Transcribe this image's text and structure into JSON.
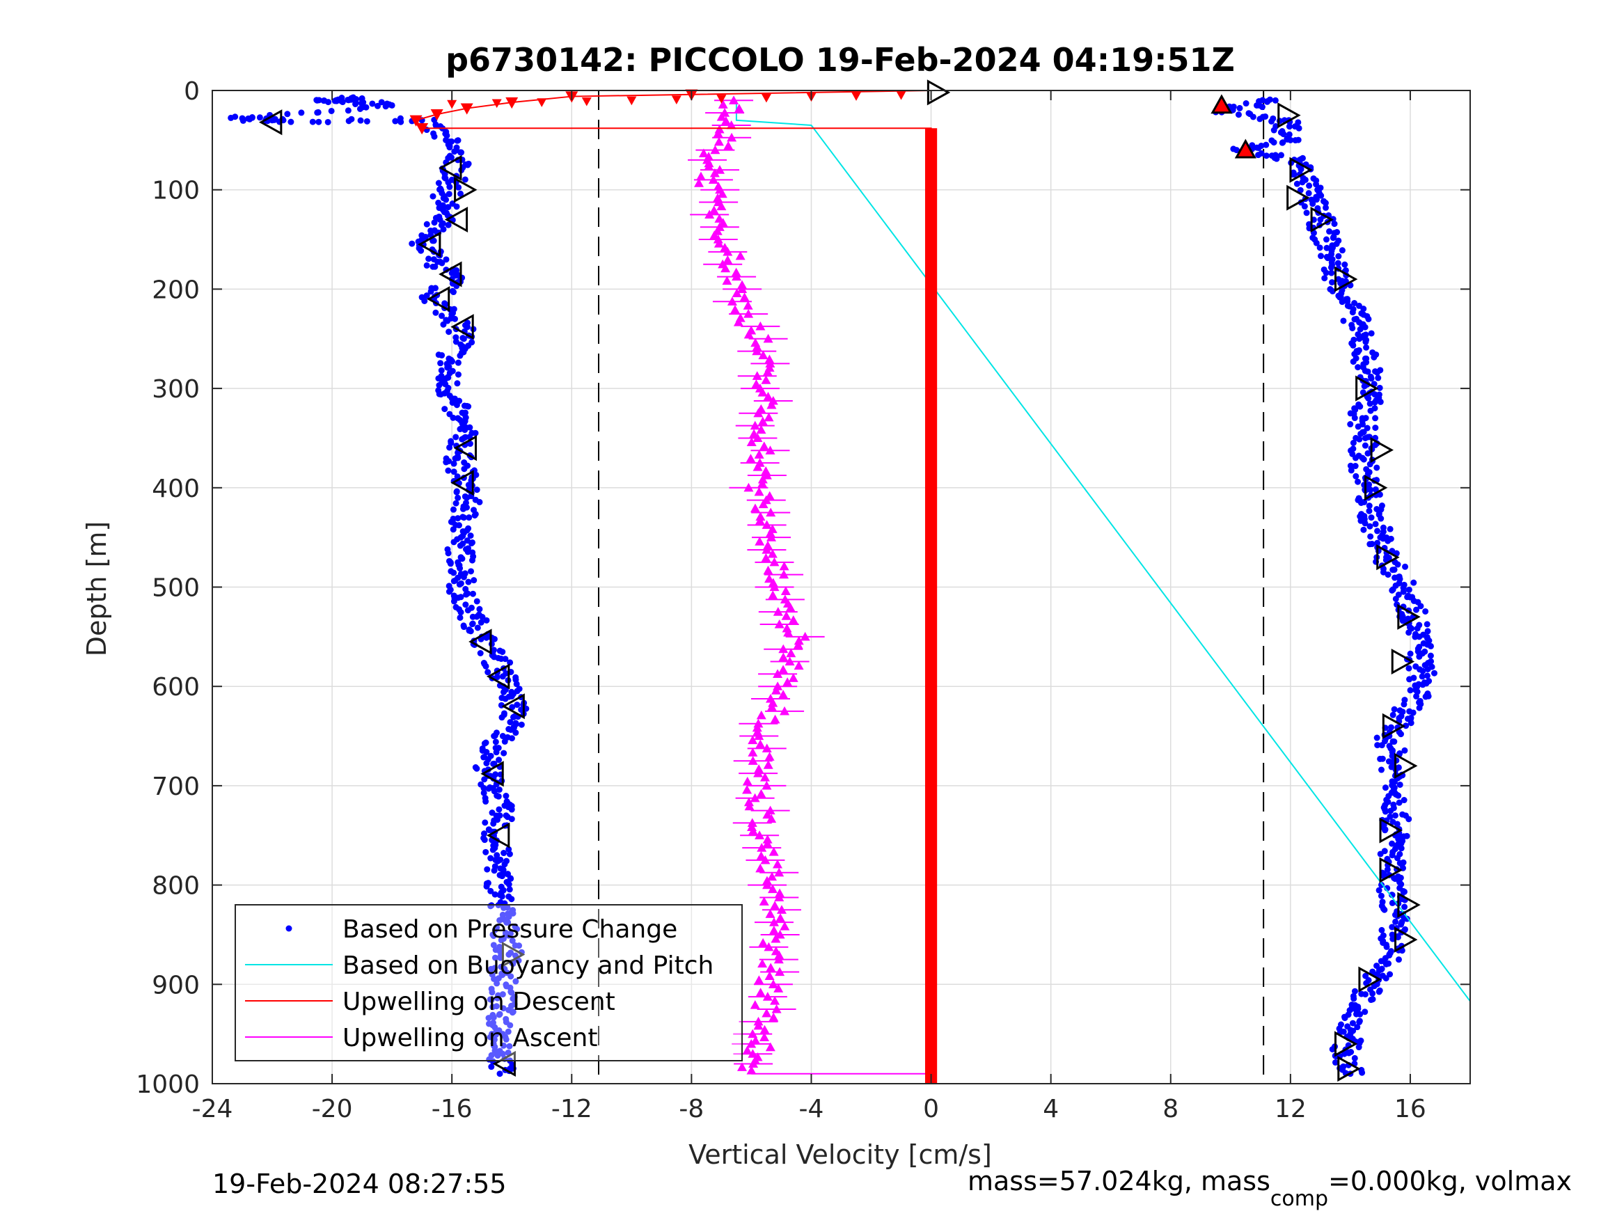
{
  "chart_data": {
    "type": "scatter",
    "title": "p6730142: PICCOLO 19-Feb-2024 04:19:51Z",
    "xlabel": "Vertical Velocity [cm/s]",
    "ylabel": "Depth [m]",
    "xlim": [
      -24,
      18
    ],
    "ylim": [
      0,
      1000
    ],
    "y_reversed": true,
    "grid": true,
    "x_ticks": [
      -24,
      -20,
      -16,
      -12,
      -8,
      -4,
      0,
      4,
      8,
      12,
      16
    ],
    "y_ticks": [
      0,
      100,
      200,
      300,
      400,
      500,
      600,
      700,
      800,
      900,
      1000
    ],
    "legend_position": "bottom-left",
    "reference_lines": [
      -11.1,
      11.1
    ],
    "series": [
      {
        "name": "Based on Pressure Change",
        "color": "#0000ff",
        "style": "dots",
        "descent": [
          [
            -23,
            28
          ],
          [
            -22,
            30
          ],
          [
            -20.5,
            10
          ],
          [
            -19,
            8
          ],
          [
            -18,
            15
          ],
          [
            -17,
            30
          ],
          [
            -16.2,
            50
          ],
          [
            -15.8,
            70
          ],
          [
            -16,
            90
          ],
          [
            -16.2,
            110
          ],
          [
            -16.4,
            130
          ],
          [
            -17,
            150
          ],
          [
            -16.6,
            170
          ],
          [
            -16,
            190
          ],
          [
            -16.6,
            210
          ],
          [
            -15.9,
            230
          ],
          [
            -15.6,
            250
          ],
          [
            -16.1,
            270
          ],
          [
            -16.2,
            290
          ],
          [
            -16,
            310
          ],
          [
            -15.8,
            330
          ],
          [
            -15.6,
            350
          ],
          [
            -15.8,
            370
          ],
          [
            -15.6,
            390
          ],
          [
            -15.5,
            410
          ],
          [
            -15.6,
            430
          ],
          [
            -15.7,
            450
          ],
          [
            -15.7,
            470
          ],
          [
            -15.6,
            490
          ],
          [
            -15.7,
            510
          ],
          [
            -15.3,
            530
          ],
          [
            -15,
            550
          ],
          [
            -14.6,
            570
          ],
          [
            -14.3,
            590
          ],
          [
            -14,
            610
          ],
          [
            -13.9,
            630
          ],
          [
            -14.3,
            650
          ],
          [
            -14.7,
            670
          ],
          [
            -14.8,
            690
          ],
          [
            -14.5,
            710
          ],
          [
            -14.4,
            730
          ],
          [
            -14.6,
            750
          ],
          [
            -14.5,
            770
          ],
          [
            -14.4,
            790
          ],
          [
            -14.4,
            810
          ],
          [
            -14.3,
            830
          ],
          [
            -14.2,
            850
          ],
          [
            -14.1,
            870
          ],
          [
            -14.3,
            890
          ],
          [
            -14.3,
            910
          ],
          [
            -14.4,
            930
          ],
          [
            -14.3,
            950
          ],
          [
            -14.3,
            970
          ],
          [
            -14.4,
            990
          ]
        ],
        "ascent": [
          [
            14,
            990
          ],
          [
            13.8,
            970
          ],
          [
            14,
            950
          ],
          [
            14.2,
            930
          ],
          [
            14.5,
            910
          ],
          [
            14.9,
            890
          ],
          [
            15.3,
            870
          ],
          [
            15.4,
            850
          ],
          [
            15.5,
            830
          ],
          [
            15.4,
            810
          ],
          [
            15.3,
            790
          ],
          [
            15.4,
            770
          ],
          [
            15.5,
            750
          ],
          [
            15.5,
            730
          ],
          [
            15.6,
            710
          ],
          [
            15.5,
            690
          ],
          [
            15.4,
            670
          ],
          [
            15.3,
            650
          ],
          [
            15.7,
            630
          ],
          [
            16.2,
            610
          ],
          [
            16.4,
            590
          ],
          [
            16.3,
            570
          ],
          [
            16.3,
            550
          ],
          [
            16.1,
            530
          ],
          [
            15.9,
            510
          ],
          [
            15.6,
            490
          ],
          [
            15.2,
            470
          ],
          [
            15,
            450
          ],
          [
            14.7,
            430
          ],
          [
            14.6,
            410
          ],
          [
            14.5,
            390
          ],
          [
            14.4,
            370
          ],
          [
            14.5,
            350
          ],
          [
            14.4,
            330
          ],
          [
            14.6,
            310
          ],
          [
            14.7,
            290
          ],
          [
            14.5,
            270
          ],
          [
            14.3,
            250
          ],
          [
            14.2,
            230
          ],
          [
            13.9,
            210
          ],
          [
            13.6,
            190
          ],
          [
            13.4,
            170
          ],
          [
            13.2,
            150
          ],
          [
            13,
            130
          ],
          [
            12.7,
            110
          ],
          [
            12.5,
            90
          ],
          [
            12.3,
            70
          ],
          [
            12,
            50
          ],
          [
            11.8,
            30
          ],
          [
            11.5,
            10
          ],
          [
            10.2,
            60
          ],
          [
            9.8,
            20
          ]
        ]
      },
      {
        "name": "Based on Buoyancy and Pitch",
        "color": "#00e5e5",
        "style": "line",
        "points": [
          [
            -6.5,
            10
          ],
          [
            -6.5,
            30
          ],
          [
            -4,
            35
          ],
          [
            18,
            917
          ]
        ]
      },
      {
        "name": "Upwelling on Descent",
        "color": "#ff0000",
        "style": "line-down-triangles",
        "points": [
          [
            0,
            0
          ],
          [
            -8,
            4
          ],
          [
            -12,
            6
          ],
          [
            -14,
            12
          ],
          [
            -15.5,
            18
          ],
          [
            -16.5,
            24
          ],
          [
            -17.2,
            30
          ],
          [
            -17,
            38
          ],
          [
            0,
            38
          ],
          [
            0,
            40
          ],
          [
            0,
            1000
          ]
        ]
      },
      {
        "name": "Upwelling on Ascent",
        "color": "#ff00ff",
        "style": "up-triangles",
        "points": [
          [
            -6.5,
            10
          ],
          [
            -7.2,
            60
          ],
          [
            -7.4,
            100
          ],
          [
            -6.8,
            150
          ],
          [
            -6.5,
            200
          ],
          [
            -5.8,
            250
          ],
          [
            -5.6,
            300
          ],
          [
            -5.6,
            350
          ],
          [
            -5.8,
            400
          ],
          [
            -5.4,
            450
          ],
          [
            -5.2,
            500
          ],
          [
            -4.6,
            550
          ],
          [
            -4.8,
            600
          ],
          [
            -5.6,
            650
          ],
          [
            -5.8,
            700
          ],
          [
            -5.6,
            750
          ],
          [
            -5.4,
            800
          ],
          [
            -5.2,
            850
          ],
          [
            -5.4,
            900
          ],
          [
            -5.6,
            950
          ],
          [
            -6,
            990
          ]
        ]
      }
    ],
    "markers": [
      {
        "type": "tri-left",
        "points": [
          [
            -22,
            32
          ],
          [
            -16,
            78
          ],
          [
            -15.8,
            130
          ],
          [
            -16.7,
            155
          ],
          [
            -16,
            185
          ],
          [
            -16.4,
            210
          ],
          [
            -15.6,
            238
          ],
          [
            -15.5,
            360
          ],
          [
            -15.6,
            395
          ],
          [
            -15,
            555
          ],
          [
            -14.4,
            590
          ],
          [
            -13.9,
            620
          ],
          [
            -14.6,
            688
          ],
          [
            -14.4,
            750
          ],
          [
            -14.2,
            980
          ]
        ]
      },
      {
        "type": "tri-right",
        "points": [
          [
            -15.6,
            100
          ],
          [
            -14,
            870
          ],
          [
            0.2,
            2
          ],
          [
            11.9,
            25
          ],
          [
            12.3,
            80
          ],
          [
            12.2,
            108
          ],
          [
            13,
            130
          ],
          [
            13.8,
            190
          ],
          [
            14.5,
            300
          ],
          [
            15,
            362
          ],
          [
            14.8,
            400
          ],
          [
            15.2,
            470
          ],
          [
            15.9,
            530
          ],
          [
            15.7,
            575
          ],
          [
            15.4,
            640
          ],
          [
            15.8,
            680
          ],
          [
            15.3,
            745
          ],
          [
            15.3,
            785
          ],
          [
            15.9,
            820
          ],
          [
            15.8,
            855
          ],
          [
            14.6,
            895
          ],
          [
            13.8,
            960
          ],
          [
            13.9,
            985
          ]
        ]
      },
      {
        "type": "tri-up-red",
        "points": [
          [
            9.7,
            15
          ],
          [
            10.5,
            60
          ]
        ]
      }
    ]
  },
  "footer": {
    "timestamp": "19-Feb-2024 08:27:55",
    "mass_prefix": "mass=57.024kg, mass",
    "mass_sub": "comp",
    "mass_suffix": "=0.000kg, volmax"
  }
}
